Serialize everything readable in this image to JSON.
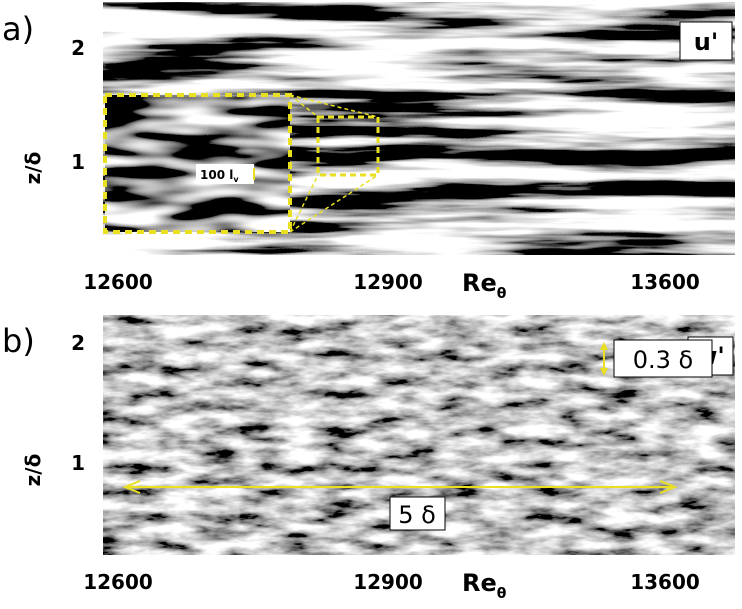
{
  "panels": [
    {
      "label": "a)",
      "y_axis_label": "z/δ",
      "y_ticks": [
        "2",
        "1"
      ],
      "x_ticks": [
        "12600",
        "12900",
        "13600"
      ],
      "x_axis_label": "Re",
      "x_axis_subscript": "θ",
      "component": "u'",
      "inset_label": "100 l",
      "inset_label_subscript": "v"
    },
    {
      "label": "b)",
      "y_axis_label": "z/δ",
      "y_ticks": [
        "2",
        "1"
      ],
      "x_ticks": [
        "12600",
        "12900",
        "13600"
      ],
      "x_axis_label": "Re",
      "x_axis_subscript": "θ",
      "component": "w'",
      "annotations": [
        "0.3 δ",
        "5 δ"
      ]
    }
  ]
}
